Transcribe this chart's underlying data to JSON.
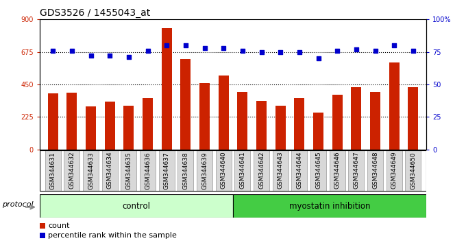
{
  "title": "GDS3526 / 1455043_at",
  "samples": [
    "GSM344631",
    "GSM344632",
    "GSM344633",
    "GSM344634",
    "GSM344635",
    "GSM344636",
    "GSM344637",
    "GSM344638",
    "GSM344639",
    "GSM344640",
    "GSM344641",
    "GSM344642",
    "GSM344643",
    "GSM344644",
    "GSM344645",
    "GSM344646",
    "GSM344647",
    "GSM344648",
    "GSM344649",
    "GSM344650"
  ],
  "counts": [
    390,
    392,
    300,
    330,
    305,
    355,
    840,
    625,
    460,
    510,
    400,
    335,
    305,
    355,
    255,
    380,
    430,
    400,
    600,
    430
  ],
  "percentiles": [
    76,
    76,
    72,
    72,
    71,
    76,
    80,
    80,
    78,
    78,
    76,
    75,
    75,
    75,
    70,
    76,
    77,
    76,
    80,
    76
  ],
  "n_control": 10,
  "n_myostatin": 10,
  "bar_color": "#cc2200",
  "dot_color": "#0000cc",
  "control_color": "#ccffcc",
  "myostatin_color": "#44cc44",
  "ylim_left": [
    0,
    900
  ],
  "ylim_right": [
    0,
    100
  ],
  "yticks_left": [
    0,
    225,
    450,
    675,
    900
  ],
  "yticks_right": [
    0,
    25,
    50,
    75,
    100
  ],
  "grid_vals": [
    225,
    450,
    675
  ],
  "legend_count": "count",
  "legend_pct": "percentile rank within the sample",
  "protocol_label": "protocol",
  "control_label": "control",
  "myostatin_label": "myostatin inhibition",
  "title_fontsize": 10,
  "tick_fontsize": 7,
  "label_fontsize": 8
}
